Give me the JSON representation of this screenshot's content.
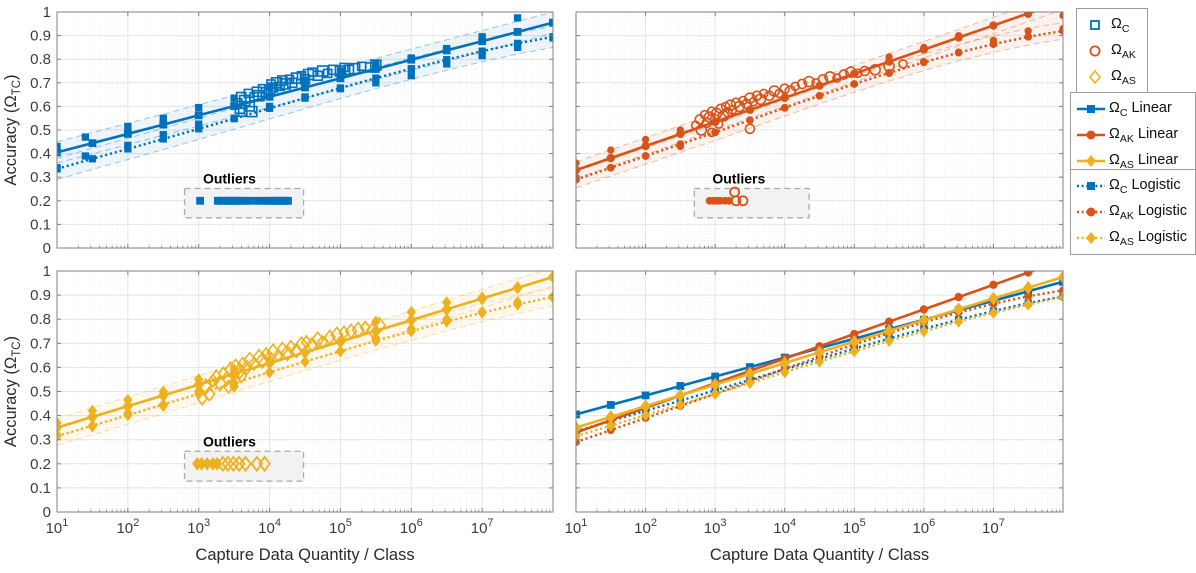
{
  "figure": {
    "outlier_label": "Outliers"
  },
  "chart_data": {
    "type": "line+scatter",
    "xlabel": "Capture Data Quantity / Class",
    "ylabel_parts": {
      "prefix": "Accuracy (",
      "omega": "Ω",
      "sub": "TC",
      "suffix": ")"
    },
    "xscale": "log",
    "xlim_log10": [
      1,
      8
    ],
    "ylim": [
      0,
      1
    ],
    "xtick_exponents": [
      1,
      2,
      3,
      4,
      5,
      6,
      7
    ],
    "yticks": [
      "0",
      "0.1",
      "0.2",
      "0.3",
      "0.4",
      "0.5",
      "0.6",
      "0.7",
      "0.8",
      "0.9",
      "1"
    ],
    "grid": {
      "major": true,
      "minor_x": true,
      "legend_position": "outside-right"
    },
    "outlier_y": 0.2,
    "colors": {
      "C": "#0072BD",
      "AK": "#D95319",
      "AS": "#EDB120"
    },
    "markers": {
      "C": "square",
      "AK": "circle",
      "AS": "diamond"
    },
    "logistic_x_log10": [
      1,
      1.5,
      2,
      2.5,
      3,
      3.5,
      4,
      4.5,
      5,
      5.5,
      6,
      6.5,
      7,
      7.5,
      8
    ],
    "series": {
      "C": {
        "name": "ΩC",
        "linear": {
          "x_log10": [
            1,
            8
          ],
          "y": [
            0.405,
            0.955
          ]
        },
        "logistic_y": [
          0.335,
          0.378,
          0.42,
          0.462,
          0.505,
          0.548,
          0.592,
          0.635,
          0.678,
          0.72,
          0.76,
          0.798,
          0.834,
          0.867,
          0.895
        ],
        "band_halfwidth": 0.045,
        "scatter_open": [
          [
            3.55,
            0.615
          ],
          [
            3.6,
            0.64
          ],
          [
            3.65,
            0.625
          ],
          [
            3.7,
            0.655
          ],
          [
            3.72,
            0.6
          ],
          [
            3.75,
            0.578
          ],
          [
            3.78,
            0.64
          ],
          [
            3.82,
            0.662
          ],
          [
            3.85,
            0.645
          ],
          [
            3.9,
            0.675
          ],
          [
            3.95,
            0.66
          ],
          [
            4.0,
            0.67
          ],
          [
            4.02,
            0.695
          ],
          [
            4.05,
            0.68
          ],
          [
            4.1,
            0.7
          ],
          [
            4.15,
            0.685
          ],
          [
            4.18,
            0.71
          ],
          [
            4.22,
            0.695
          ],
          [
            4.28,
            0.715
          ],
          [
            4.32,
            0.7
          ],
          [
            4.38,
            0.72
          ],
          [
            4.45,
            0.73
          ],
          [
            4.5,
            0.715
          ],
          [
            4.55,
            0.735
          ],
          [
            4.6,
            0.745
          ],
          [
            4.68,
            0.73
          ],
          [
            4.75,
            0.75
          ],
          [
            4.82,
            0.74
          ],
          [
            4.9,
            0.755
          ],
          [
            5.0,
            0.75
          ],
          [
            5.05,
            0.765
          ],
          [
            5.12,
            0.755
          ],
          [
            5.2,
            0.76
          ],
          [
            5.3,
            0.77
          ],
          [
            5.42,
            0.765
          ],
          [
            5.5,
            0.775
          ],
          [
            3.62,
            0.575
          ],
          [
            3.58,
            0.59
          ]
        ],
        "scatter_filled": [
          [
            1,
            0.34
          ],
          [
            1,
            0.43
          ],
          [
            1.4,
            0.39
          ],
          [
            1.4,
            0.47
          ],
          [
            2,
            0.435
          ],
          [
            2,
            0.515
          ],
          [
            2.5,
            0.48
          ],
          [
            2.5,
            0.55
          ],
          [
            3,
            0.525
          ],
          [
            3,
            0.595
          ],
          [
            3.5,
            0.55
          ],
          [
            3.5,
            0.635
          ],
          [
            4,
            0.6
          ],
          [
            4,
            0.68
          ],
          [
            4.5,
            0.64
          ],
          [
            4.5,
            0.71
          ],
          [
            5,
            0.675
          ],
          [
            5,
            0.75
          ],
          [
            5.5,
            0.7
          ],
          [
            5.5,
            0.78
          ],
          [
            6,
            0.73
          ],
          [
            6,
            0.805
          ],
          [
            6.5,
            0.78
          ],
          [
            6.5,
            0.845
          ],
          [
            7,
            0.815
          ],
          [
            7,
            0.895
          ],
          [
            7.5,
            0.85
          ],
          [
            7.5,
            0.975
          ],
          [
            8,
            0.89
          ],
          [
            8,
            0.955
          ]
        ],
        "outliers_filled": [
          3.02,
          3.27,
          3.31,
          3.35,
          3.39,
          3.43,
          3.47,
          3.51,
          3.56,
          3.6,
          3.65,
          3.72,
          3.83,
          3.9,
          3.96,
          4.01,
          4.06,
          4.1,
          4.14,
          4.18,
          4.22,
          4.26
        ],
        "outliers_open": [],
        "outliers_raised": [],
        "outlier_box_log10": [
          2.8,
          4.48
        ]
      },
      "AK": {
        "name": "ΩAK",
        "linear": {
          "x_log10": [
            1,
            8
          ],
          "y": [
            0.33,
            1.045
          ]
        },
        "logistic_y": [
          0.29,
          0.34,
          0.39,
          0.44,
          0.49,
          0.542,
          0.594,
          0.645,
          0.695,
          0.742,
          0.787,
          0.828,
          0.864,
          0.895,
          0.92
        ],
        "band_halfwidth": 0.035,
        "scatter_open": [
          [
            2.72,
            0.52
          ],
          [
            2.78,
            0.545
          ],
          [
            2.8,
            0.5
          ],
          [
            2.85,
            0.565
          ],
          [
            2.88,
            0.53
          ],
          [
            2.92,
            0.555
          ],
          [
            2.95,
            0.58
          ],
          [
            3.0,
            0.545
          ],
          [
            3.02,
            0.57
          ],
          [
            3.05,
            0.525
          ],
          [
            3.08,
            0.59
          ],
          [
            3.12,
            0.56
          ],
          [
            3.15,
            0.6
          ],
          [
            3.18,
            0.575
          ],
          [
            3.22,
            0.605
          ],
          [
            3.25,
            0.585
          ],
          [
            3.3,
            0.615
          ],
          [
            3.35,
            0.6
          ],
          [
            3.4,
            0.625
          ],
          [
            3.45,
            0.61
          ],
          [
            3.5,
            0.635
          ],
          [
            3.55,
            0.62
          ],
          [
            3.6,
            0.645
          ],
          [
            3.65,
            0.63
          ],
          [
            3.7,
            0.655
          ],
          [
            3.78,
            0.645
          ],
          [
            3.85,
            0.665
          ],
          [
            3.92,
            0.655
          ],
          [
            4.0,
            0.675
          ],
          [
            4.08,
            0.665
          ],
          [
            4.15,
            0.685
          ],
          [
            4.25,
            0.695
          ],
          [
            4.35,
            0.705
          ],
          [
            4.45,
            0.7
          ],
          [
            4.55,
            0.715
          ],
          [
            4.65,
            0.725
          ],
          [
            4.75,
            0.72
          ],
          [
            4.85,
            0.735
          ],
          [
            4.95,
            0.745
          ],
          [
            5.05,
            0.74
          ],
          [
            5.15,
            0.75
          ],
          [
            5.3,
            0.755
          ],
          [
            2.95,
            0.49
          ],
          [
            3.5,
            0.505
          ],
          [
            5.5,
            0.77
          ],
          [
            5.7,
            0.78
          ]
        ],
        "scatter_filled": [
          [
            1,
            0.3
          ],
          [
            1,
            0.36
          ],
          [
            1.5,
            0.34
          ],
          [
            1.5,
            0.415
          ],
          [
            2,
            0.39
          ],
          [
            2,
            0.46
          ],
          [
            2.5,
            0.43
          ],
          [
            2.5,
            0.5
          ],
          [
            5.5,
            0.74
          ],
          [
            5.5,
            0.81
          ],
          [
            6,
            0.79
          ],
          [
            6,
            0.85
          ],
          [
            6.5,
            0.83
          ],
          [
            6.5,
            0.9
          ],
          [
            7,
            0.88
          ],
          [
            7,
            0.94
          ],
          [
            7.5,
            0.92
          ],
          [
            7.5,
            0.99
          ],
          [
            8,
            0.93
          ],
          [
            8,
            0.985
          ]
        ],
        "outliers_filled": [
          2.92,
          2.97,
          3.02,
          3.07,
          3.14,
          3.2
        ],
        "outliers_open": [
          3.3,
          3.4
        ],
        "outliers_raised": [
          [
            3.28,
            0.237
          ]
        ],
        "outlier_box_log10": [
          2.7,
          4.35
        ]
      },
      "AS": {
        "name": "ΩAS",
        "linear": {
          "x_log10": [
            1,
            8
          ],
          "y": [
            0.35,
            0.975
          ]
        },
        "logistic_y": [
          0.315,
          0.358,
          0.402,
          0.446,
          0.49,
          0.535,
          0.58,
          0.624,
          0.667,
          0.71,
          0.75,
          0.79,
          0.827,
          0.861,
          0.893
        ],
        "band_halfwidth": 0.038,
        "scatter_open": [
          [
            3.05,
            0.47
          ],
          [
            3.15,
            0.49
          ],
          [
            3.1,
            0.52
          ],
          [
            3.2,
            0.545
          ],
          [
            3.25,
            0.56
          ],
          [
            3.3,
            0.535
          ],
          [
            3.35,
            0.575
          ],
          [
            3.4,
            0.555
          ],
          [
            3.45,
            0.59
          ],
          [
            3.5,
            0.57
          ],
          [
            3.52,
            0.605
          ],
          [
            3.58,
            0.585
          ],
          [
            3.62,
            0.615
          ],
          [
            3.68,
            0.6
          ],
          [
            3.72,
            0.63
          ],
          [
            3.78,
            0.615
          ],
          [
            3.85,
            0.645
          ],
          [
            3.9,
            0.63
          ],
          [
            3.95,
            0.655
          ],
          [
            4.0,
            0.64
          ],
          [
            4.05,
            0.665
          ],
          [
            4.12,
            0.65
          ],
          [
            4.18,
            0.675
          ],
          [
            4.25,
            0.66
          ],
          [
            4.3,
            0.685
          ],
          [
            4.38,
            0.67
          ],
          [
            4.45,
            0.695
          ],
          [
            4.52,
            0.705
          ],
          [
            4.6,
            0.695
          ],
          [
            4.68,
            0.715
          ],
          [
            4.75,
            0.705
          ],
          [
            4.85,
            0.725
          ],
          [
            4.95,
            0.735
          ],
          [
            5.05,
            0.745
          ],
          [
            5.15,
            0.75
          ],
          [
            5.25,
            0.755
          ],
          [
            5.35,
            0.765
          ],
          [
            5.45,
            0.755
          ],
          [
            5.55,
            0.775
          ],
          [
            3.42,
            0.52
          ],
          [
            3.6,
            0.565
          ]
        ],
        "scatter_filled": [
          [
            1,
            0.32
          ],
          [
            1,
            0.37
          ],
          [
            1.5,
            0.355
          ],
          [
            1.5,
            0.42
          ],
          [
            2,
            0.41
          ],
          [
            2,
            0.465
          ],
          [
            2.5,
            0.44
          ],
          [
            2.5,
            0.5
          ],
          [
            3,
            0.5
          ],
          [
            3,
            0.55
          ],
          [
            3.5,
            0.52
          ],
          [
            3.5,
            0.59
          ],
          [
            5.5,
            0.72
          ],
          [
            5.5,
            0.79
          ],
          [
            6,
            0.76
          ],
          [
            6,
            0.83
          ],
          [
            6.5,
            0.8
          ],
          [
            6.5,
            0.87
          ],
          [
            7,
            0.83
          ],
          [
            7,
            0.89
          ],
          [
            7.5,
            0.87
          ],
          [
            7.5,
            0.93
          ],
          [
            8,
            0.89
          ],
          [
            8,
            0.975
          ]
        ],
        "outliers_filled": [
          2.98,
          3.04,
          3.12,
          3.2,
          3.26
        ],
        "outliers_open": [
          3.34,
          3.41,
          3.49,
          3.57,
          3.66,
          3.82,
          3.93
        ],
        "outliers_raised": [],
        "outlier_box_log10": [
          2.8,
          4.48
        ]
      }
    },
    "panels": [
      {
        "id": "top-left",
        "models": [
          "C"
        ],
        "detail": true,
        "ytick_labels": true,
        "xtick_labels": false,
        "ylabel": true,
        "xlabel": false
      },
      {
        "id": "top-right",
        "models": [
          "AK"
        ],
        "detail": true,
        "ytick_labels": false,
        "xtick_labels": false,
        "ylabel": false,
        "xlabel": false
      },
      {
        "id": "bottom-left",
        "models": [
          "AS"
        ],
        "detail": true,
        "ytick_labels": true,
        "xtick_labels": true,
        "ylabel": true,
        "xlabel": true
      },
      {
        "id": "bottom-right",
        "models": [
          "C",
          "AK",
          "AS"
        ],
        "detail": false,
        "ytick_labels": false,
        "xtick_labels": true,
        "ylabel": false,
        "xlabel": true
      }
    ]
  },
  "legend": {
    "marker_items": [
      {
        "omega": "Ω",
        "sub": "C",
        "suffix": ""
      },
      {
        "omega": "Ω",
        "sub": "AK",
        "suffix": ""
      },
      {
        "omega": "Ω",
        "sub": "AS",
        "suffix": ""
      }
    ],
    "linear_items": [
      {
        "omega": "Ω",
        "sub": "C",
        "suffix": " Linear"
      },
      {
        "omega": "Ω",
        "sub": "AK",
        "suffix": " Linear"
      },
      {
        "omega": "Ω",
        "sub": "AS",
        "suffix": " Linear"
      }
    ],
    "logistic_items": [
      {
        "omega": "Ω",
        "sub": "C",
        "suffix": " Logistic"
      },
      {
        "omega": "Ω",
        "sub": "AK",
        "suffix": " Logistic"
      },
      {
        "omega": "Ω",
        "sub": "AS",
        "suffix": " Logistic"
      }
    ]
  }
}
